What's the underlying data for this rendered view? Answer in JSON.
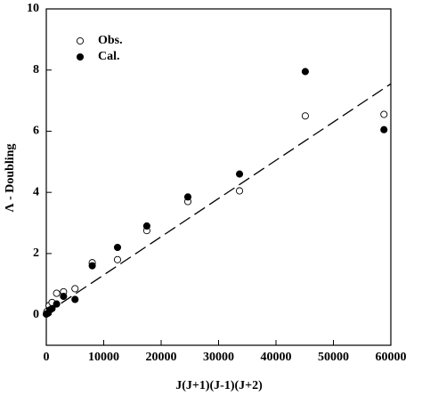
{
  "chart_data": {
    "type": "scatter",
    "xlabel": "J(J+1)(J-1)(J+2)",
    "ylabel": "Λ - Doubling",
    "xlim": [
      0,
      60000
    ],
    "ylim": [
      -1,
      10
    ],
    "xticks": [
      0,
      10000,
      20000,
      30000,
      40000,
      50000,
      60000
    ],
    "yticks": [
      0,
      2,
      4,
      6,
      8,
      10
    ],
    "legend": "upper left",
    "series": [
      {
        "name": "Obs.",
        "marker": "open",
        "color": "#000000",
        "x": [
          100,
          500,
          1000,
          1800,
          3000,
          5000,
          8000,
          12400,
          17500,
          24650,
          33650,
          45100,
          58800
        ],
        "values": [
          0.1,
          0.3,
          0.4,
          0.7,
          0.75,
          0.85,
          1.7,
          1.8,
          2.75,
          3.7,
          4.05,
          6.5,
          6.55
        ]
      },
      {
        "name": "Cal.",
        "marker": "filled",
        "color": "#000000",
        "x": [
          0,
          300,
          600,
          1000,
          1800,
          3000,
          5000,
          8000,
          12400,
          17500,
          24650,
          33650,
          45100,
          58800
        ],
        "values": [
          0.02,
          0.05,
          0.15,
          0.2,
          0.35,
          0.6,
          0.5,
          1.6,
          2.2,
          2.9,
          3.85,
          4.6,
          7.95,
          6.05
        ]
      }
    ],
    "fit_line": {
      "style": "dashed",
      "color": "#000000",
      "x": [
        0,
        60000
      ],
      "values": [
        0.05,
        7.55
      ]
    }
  }
}
